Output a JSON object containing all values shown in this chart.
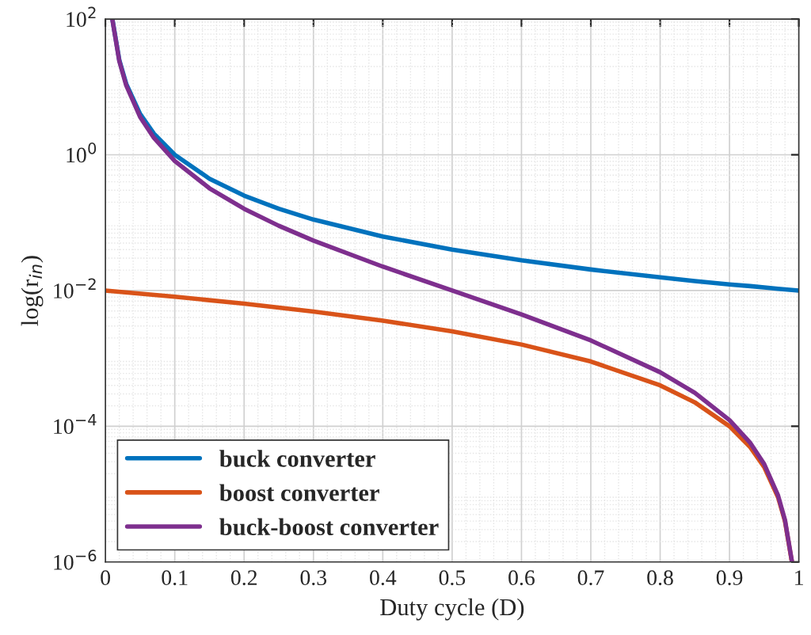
{
  "chart_data": {
    "type": "line",
    "xlabel": "Duty cycle (D)",
    "ylabel": "log(r$_{in}$)",
    "log": "y",
    "grid": true,
    "legend": "bottom left",
    "line_style": "solid",
    "marker": "none",
    "xlim": [
      0,
      1
    ],
    "xticks": [
      0,
      0.1,
      0.2,
      0.3,
      0.4,
      0.5,
      0.6,
      0.7,
      0.8,
      0.9,
      1
    ],
    "ylim": [
      1e-06,
      100
    ],
    "yticks": [
      {
        "value": 1e-06,
        "label": "10$^{−6}$"
      },
      {
        "value": 0.0001,
        "label": "10$^{−4}$"
      },
      {
        "value": 0.01,
        "label": "10$^{−2}$"
      },
      {
        "value": 1,
        "label": "10$^{0}$"
      },
      {
        "value": 100,
        "label": "10$^{2}$"
      }
    ],
    "series": [
      {
        "name": "buck converter",
        "color": "#0072bd",
        "x": [
          0.01,
          0.02,
          0.03,
          0.05,
          0.07,
          0.1,
          0.15,
          0.2,
          0.25,
          0.3,
          0.4,
          0.5,
          0.6,
          0.7,
          0.8,
          0.85,
          0.9,
          0.93,
          0.95,
          0.97,
          0.98,
          0.99,
          1.0
        ],
        "values": [
          100,
          25,
          11.1,
          4,
          2.04,
          1,
          0.444,
          0.25,
          0.16,
          0.111,
          0.0625,
          0.04,
          0.0278,
          0.0204,
          0.0156,
          0.0138,
          0.0123,
          0.0116,
          0.0111,
          0.0106,
          0.0104,
          0.0102,
          0.01
        ]
      },
      {
        "name": "boost converter",
        "color": "#d95319",
        "x": [
          0,
          0.1,
          0.2,
          0.3,
          0.4,
          0.5,
          0.6,
          0.7,
          0.8,
          0.85,
          0.9,
          0.93,
          0.95,
          0.97,
          0.98,
          0.99
        ],
        "values": [
          0.01,
          0.0081,
          0.0064,
          0.0049,
          0.0036,
          0.0025,
          0.0016,
          0.0009,
          0.0004,
          0.000225,
          0.0001,
          4.9e-05,
          2.5e-05,
          9e-06,
          4e-06,
          1e-06
        ]
      },
      {
        "name": "buck-boost converter",
        "color": "#7e2f8e",
        "x": [
          0.01,
          0.02,
          0.03,
          0.05,
          0.07,
          0.1,
          0.15,
          0.2,
          0.25,
          0.3,
          0.4,
          0.5,
          0.6,
          0.7,
          0.8,
          0.85,
          0.9,
          0.93,
          0.95,
          0.97,
          0.98,
          0.99
        ],
        "values": [
          98,
          24,
          10.5,
          3.61,
          1.77,
          0.81,
          0.321,
          0.16,
          0.09,
          0.0544,
          0.0225,
          0.01,
          0.00444,
          0.00184,
          0.000625,
          0.000311,
          0.000123,
          5.67e-05,
          2.77e-05,
          9.56e-06,
          4.16e-06,
          1.02e-06
        ]
      }
    ]
  }
}
